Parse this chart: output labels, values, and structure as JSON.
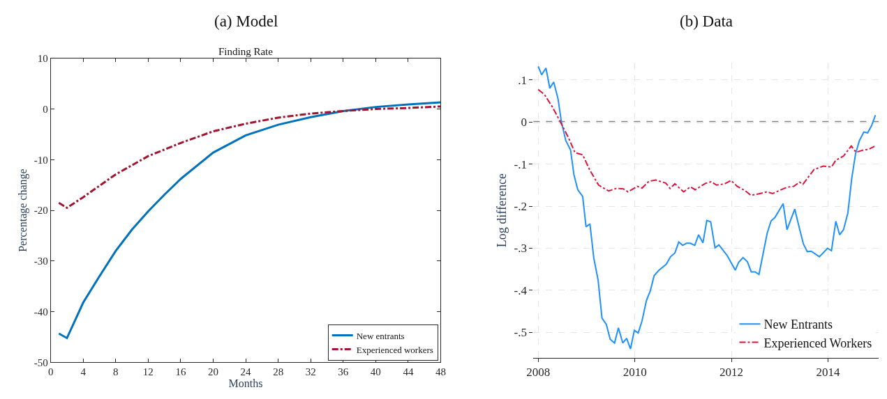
{
  "chart_data": [
    {
      "type": "line",
      "title": "(a) Model",
      "subtitle": "Finding Rate",
      "xlabel": "Months",
      "ylabel": "Percentage change",
      "xlim": [
        0,
        48
      ],
      "ylim": [
        -50,
        10
      ],
      "xticks": [
        0,
        4,
        8,
        12,
        16,
        20,
        24,
        28,
        32,
        36,
        40,
        44,
        48
      ],
      "yticks": [
        -50,
        -40,
        -30,
        -20,
        -10,
        0,
        10
      ],
      "grid": false,
      "legend": "bottom right",
      "series": [
        {
          "name": "New entrants",
          "color": "#0072bd",
          "line_style": "solid",
          "x": [
            1,
            2,
            4,
            6,
            8,
            10,
            12,
            14,
            16,
            20,
            24,
            28,
            32,
            36,
            40,
            44,
            48
          ],
          "values": [
            -44.3,
            -45.2,
            -38.2,
            -33.0,
            -28.0,
            -23.8,
            -20.2,
            -16.9,
            -13.8,
            -8.6,
            -5.2,
            -3.1,
            -1.6,
            -0.4,
            0.4,
            0.9,
            1.3
          ]
        },
        {
          "name": "Experienced workers",
          "color": "#a2142f",
          "line_style": "dashdot",
          "x": [
            1,
            2,
            4,
            8,
            12,
            16,
            20,
            24,
            28,
            32,
            36,
            40,
            44,
            48
          ],
          "values": [
            -18.5,
            -19.5,
            -17.4,
            -12.9,
            -9.3,
            -6.7,
            -4.4,
            -2.9,
            -1.7,
            -0.9,
            -0.4,
            0.0,
            0.2,
            0.5
          ]
        }
      ]
    },
    {
      "type": "line",
      "title": "(b) Data",
      "ylabel": "Log difference",
      "xlim": [
        2007.9,
        2015.05
      ],
      "ylim": [
        -0.56,
        0.14
      ],
      "xticks": [
        2008,
        2010,
        2012,
        2014
      ],
      "yticks": [
        {
          "value": -0.5,
          "label": "-.5"
        },
        {
          "value": -0.4,
          "label": "-.4"
        },
        {
          "value": -0.3,
          "label": "-.3"
        },
        {
          "value": -0.2,
          "label": "-.2"
        },
        {
          "value": -0.1,
          "label": "-.1"
        },
        0,
        {
          "value": 0.1,
          "label": ".1"
        }
      ],
      "grid": true,
      "legend": "bottom right",
      "ref_lines": [
        {
          "axis": "y",
          "value": 0,
          "color": "#808080",
          "line_style": "dashed"
        }
      ],
      "series": [
        {
          "name": "New Entrants",
          "color": "#1e90ff",
          "line_style": "solid",
          "x": [
            2008.0,
            2008.07,
            2008.16,
            2008.24,
            2008.32,
            2008.41,
            2008.48,
            2008.57,
            2008.67,
            2008.74,
            2008.82,
            2008.92,
            2008.99,
            2009.07,
            2009.15,
            2009.24,
            2009.32,
            2009.41,
            2009.49,
            2009.58,
            2009.66,
            2009.75,
            2009.83,
            2009.91,
            2009.99,
            2010.07,
            2010.15,
            2010.24,
            2010.32,
            2010.4,
            2010.5,
            2010.65,
            2010.74,
            2010.83,
            2010.91,
            2010.99,
            2011.07,
            2011.15,
            2011.24,
            2011.32,
            2011.41,
            2011.49,
            2011.57,
            2011.66,
            2011.74,
            2011.91,
            2012.08,
            2012.15,
            2012.24,
            2012.33,
            2012.41,
            2012.49,
            2012.57,
            2012.74,
            2012.82,
            2012.9,
            2013.07,
            2013.15,
            2013.31,
            2013.41,
            2013.49,
            2013.57,
            2013.65,
            2013.82,
            2013.99,
            2014.07,
            2014.16,
            2014.24,
            2014.32,
            2014.41,
            2014.49,
            2014.57,
            2014.65,
            2014.74,
            2014.82,
            2014.9,
            2014.98
          ],
          "values": [
            0.132,
            0.112,
            0.128,
            0.08,
            0.095,
            0.055,
            0.0,
            -0.044,
            -0.067,
            -0.126,
            -0.161,
            -0.177,
            -0.249,
            -0.242,
            -0.323,
            -0.376,
            -0.466,
            -0.481,
            -0.516,
            -0.525,
            -0.489,
            -0.525,
            -0.514,
            -0.539,
            -0.495,
            -0.501,
            -0.472,
            -0.424,
            -0.401,
            -0.365,
            -0.352,
            -0.338,
            -0.32,
            -0.311,
            -0.285,
            -0.293,
            -0.288,
            -0.288,
            -0.293,
            -0.268,
            -0.287,
            -0.234,
            -0.237,
            -0.299,
            -0.292,
            -0.317,
            -0.352,
            -0.333,
            -0.322,
            -0.332,
            -0.356,
            -0.356,
            -0.362,
            -0.264,
            -0.235,
            -0.227,
            -0.194,
            -0.256,
            -0.207,
            -0.254,
            -0.29,
            -0.308,
            -0.307,
            -0.32,
            -0.3,
            -0.306,
            -0.236,
            -0.268,
            -0.256,
            -0.216,
            -0.134,
            -0.075,
            -0.044,
            -0.024,
            -0.026,
            -0.009,
            0.016
          ]
        },
        {
          "name": "Experienced Workers",
          "color": "#dc143c",
          "line_style": "dashdot",
          "x": [
            2008.0,
            2008.13,
            2008.29,
            2008.45,
            2008.62,
            2008.76,
            2008.92,
            2009.07,
            2009.25,
            2009.46,
            2009.61,
            2009.76,
            2009.86,
            2010.05,
            2010.15,
            2010.29,
            2010.43,
            2010.64,
            2010.73,
            2010.83,
            2011.01,
            2011.15,
            2011.25,
            2011.46,
            2011.58,
            2011.69,
            2011.86,
            2011.99,
            2012.12,
            2012.28,
            2012.4,
            2012.56,
            2012.73,
            2012.85,
            2013.01,
            2013.15,
            2013.29,
            2013.41,
            2013.48,
            2013.71,
            2013.9,
            2014.07,
            2014.16,
            2014.32,
            2014.48,
            2014.58,
            2014.72,
            2014.84,
            2014.96
          ],
          "values": [
            0.077,
            0.065,
            0.036,
            0.002,
            -0.036,
            -0.073,
            -0.078,
            -0.115,
            -0.15,
            -0.164,
            -0.158,
            -0.159,
            -0.166,
            -0.153,
            -0.157,
            -0.141,
            -0.138,
            -0.145,
            -0.158,
            -0.147,
            -0.166,
            -0.154,
            -0.161,
            -0.146,
            -0.142,
            -0.15,
            -0.147,
            -0.139,
            -0.153,
            -0.163,
            -0.174,
            -0.171,
            -0.166,
            -0.17,
            -0.162,
            -0.155,
            -0.153,
            -0.143,
            -0.148,
            -0.113,
            -0.105,
            -0.107,
            -0.091,
            -0.081,
            -0.057,
            -0.072,
            -0.067,
            -0.065,
            -0.058
          ]
        }
      ]
    }
  ]
}
